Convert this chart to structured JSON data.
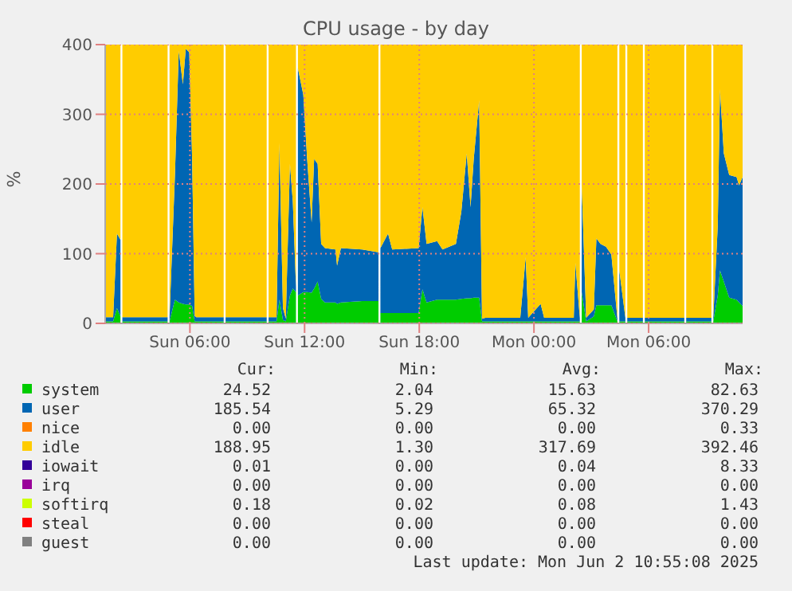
{
  "chart_data": {
    "type": "area",
    "stacked": true,
    "title": "CPU usage - by day",
    "ylabel": "%",
    "x": [
      "2025-06-01T01:34",
      "2025-06-01T01:59",
      "2025-06-01T02:11",
      "2025-06-01T02:22",
      "2025-06-01T02:25",
      "2025-06-01T02:28",
      "2025-06-01T02:37",
      "2025-06-01T02:47",
      "2025-06-01T02:50",
      "2025-06-01T02:53",
      "2025-06-01T04:50",
      "2025-06-01T04:53",
      "2025-06-01T04:56",
      "2025-06-01T05:13",
      "2025-06-01T05:25",
      "2025-06-01T05:38",
      "2025-06-01T05:47",
      "2025-06-01T05:58",
      "2025-06-01T06:07",
      "2025-06-01T06:15",
      "2025-06-01T06:20",
      "2025-06-01T07:46",
      "2025-06-01T07:49",
      "2025-06-01T07:52",
      "2025-06-01T10:01",
      "2025-06-01T10:04",
      "2025-06-01T10:07",
      "2025-06-01T10:32",
      "2025-06-01T10:41",
      "2025-06-01T10:52",
      "2025-06-01T11:01",
      "2025-06-01T11:14",
      "2025-06-01T11:23",
      "2025-06-01T11:33",
      "2025-06-01T11:36",
      "2025-06-01T11:39",
      "2025-06-01T11:56",
      "2025-06-01T12:08",
      "2025-06-01T12:22",
      "2025-06-01T12:30",
      "2025-06-01T12:41",
      "2025-06-01T12:52",
      "2025-06-01T13:04",
      "2025-06-01T13:37",
      "2025-06-01T13:42",
      "2025-06-01T13:54",
      "2025-06-01T15:01",
      "2025-06-01T15:52",
      "2025-06-01T15:55",
      "2025-06-01T15:58",
      "2025-06-01T16:22",
      "2025-06-01T16:35",
      "2025-06-01T17:58",
      "2025-06-01T18:10",
      "2025-06-01T18:23",
      "2025-06-01T18:56",
      "2025-06-01T19:13",
      "2025-06-01T19:55",
      "2025-06-01T20:12",
      "2025-06-01T20:29",
      "2025-06-01T20:41",
      "2025-06-01T20:51",
      "2025-06-01T21:08",
      "2025-06-01T21:17",
      "2025-06-01T21:28",
      "2025-06-01T23:17",
      "2025-06-01T23:34",
      "2025-06-01T23:42",
      "2025-06-02T00:21",
      "2025-06-02T00:32",
      "2025-06-02T02:05",
      "2025-06-02T02:10",
      "2025-06-02T02:24",
      "2025-06-02T02:27",
      "2025-06-02T02:30",
      "2025-06-02T02:44",
      "2025-06-02T03:08",
      "2025-06-02T03:16",
      "2025-06-02T03:29",
      "2025-06-02T03:46",
      "2025-06-02T04:03",
      "2025-06-02T04:22",
      "2025-06-02T04:25",
      "2025-06-02T04:28",
      "2025-06-02T04:47",
      "2025-06-02T04:50",
      "2025-06-02T04:53",
      "2025-06-02T05:42",
      "2025-06-02T05:45",
      "2025-06-02T05:48",
      "2025-06-02T07:52",
      "2025-06-02T07:55",
      "2025-06-02T07:58",
      "2025-06-02T09:17",
      "2025-06-02T09:20",
      "2025-06-02T09:23",
      "2025-06-02T09:37",
      "2025-06-02T09:44",
      "2025-06-02T09:56",
      "2025-06-02T10:13",
      "2025-06-02T10:36",
      "2025-06-02T10:44",
      "2025-06-02T10:55"
    ],
    "series": [
      {
        "name": "system",
        "color": "#00cc00",
        "values": [
          3,
          3,
          22,
          10,
          null,
          3,
          3,
          3,
          3,
          3,
          3,
          null,
          3,
          34,
          30,
          28,
          27,
          27,
          25,
          3,
          3,
          3,
          null,
          3,
          3,
          null,
          3,
          3,
          34,
          5,
          3,
          40,
          50,
          45,
          null,
          40,
          45,
          45,
          44,
          50,
          60,
          35,
          30,
          30,
          28,
          30,
          32,
          32,
          null,
          15,
          15,
          15,
          15,
          49,
          30,
          34,
          34,
          34,
          35,
          36,
          36,
          37,
          37,
          3,
          3,
          3,
          3,
          3,
          3,
          3,
          3,
          3,
          3,
          null,
          45,
          3,
          10,
          26,
          26,
          26,
          26,
          3,
          null,
          3,
          3,
          null,
          3,
          3,
          null,
          3,
          3,
          null,
          3,
          3,
          null,
          3,
          40,
          76,
          60,
          37,
          34,
          30,
          25
        ]
      },
      {
        "name": "user",
        "color": "#0066b3",
        "values": [
          6,
          6,
          107,
          110,
          null,
          6,
          6,
          6,
          6,
          6,
          6,
          null,
          6,
          179,
          361,
          315,
          367,
          362,
          211,
          8,
          6,
          6,
          null,
          6,
          6,
          null,
          6,
          6,
          225,
          17,
          4,
          189,
          125,
          8,
          null,
          326,
          283,
          191,
          101,
          186,
          169,
          79,
          78,
          76,
          55,
          78,
          74,
          70,
          null,
          93,
          114,
          91,
          93,
          118,
          84,
          84,
          72,
          80,
          125,
          208,
          131,
          199,
          283,
          4,
          5,
          5,
          92,
          5,
          25,
          5,
          5,
          84,
          5,
          null,
          153,
          5,
          10,
          96,
          88,
          84,
          73,
          4,
          null,
          73,
          5,
          null,
          5,
          5,
          null,
          5,
          5,
          null,
          5,
          5,
          null,
          5,
          100,
          260,
          184,
          176,
          176,
          168,
          185
        ]
      },
      {
        "name": "nice",
        "color": "#ff8000",
        "values": [
          null,
          null,
          null,
          null,
          null,
          null,
          null,
          null,
          null,
          null,
          null,
          null,
          null,
          null,
          null,
          null,
          null,
          null,
          null,
          null,
          null,
          null,
          null,
          null,
          null,
          null,
          null,
          null,
          null,
          null,
          null,
          null,
          null,
          null,
          null,
          null,
          null,
          null,
          null,
          null,
          null,
          null,
          null,
          null,
          null,
          null,
          null,
          null,
          null,
          null,
          null,
          null,
          null,
          null,
          null,
          null,
          null,
          null,
          null,
          null,
          null,
          null,
          null,
          null,
          null,
          null,
          null,
          null,
          null,
          null,
          null,
          null,
          null,
          null,
          null,
          null,
          null,
          null,
          null,
          null,
          null,
          null,
          null,
          null,
          null,
          null,
          null,
          null,
          null,
          null,
          null,
          null,
          null,
          null,
          null,
          null,
          null,
          null,
          null,
          null,
          null,
          null,
          null
        ]
      },
      {
        "name": "idle",
        "color": "#ffcc00",
        "values": [
          391,
          391,
          271,
          280,
          null,
          391,
          391,
          391,
          391,
          391,
          391,
          null,
          391,
          187,
          9,
          57,
          6,
          11,
          164,
          389,
          391,
          391,
          null,
          391,
          391,
          null,
          391,
          391,
          141,
          378,
          393,
          171,
          225,
          347,
          null,
          34,
          72,
          164,
          255,
          164,
          171,
          286,
          292,
          294,
          317,
          292,
          294,
          298,
          null,
          292,
          271,
          294,
          292,
          233,
          286,
          282,
          294,
          286,
          240,
          156,
          233,
          164,
          80,
          393,
          392,
          392,
          305,
          392,
          372,
          392,
          392,
          313,
          392,
          null,
          202,
          392,
          380,
          278,
          286,
          290,
          301,
          393,
          null,
          324,
          392,
          null,
          392,
          392,
          null,
          392,
          392,
          null,
          392,
          392,
          null,
          392,
          260,
          64,
          156,
          187,
          190,
          202,
          190
        ]
      },
      {
        "name": "iowait",
        "color": "#330099",
        "values": [
          null,
          null,
          null,
          null,
          null,
          null,
          null,
          null,
          null,
          null,
          null,
          null,
          null,
          null,
          null,
          null,
          null,
          null,
          null,
          null,
          null,
          null,
          null,
          null,
          null,
          null,
          null,
          null,
          null,
          null,
          null,
          null,
          null,
          null,
          null,
          null,
          null,
          null,
          null,
          null,
          null,
          null,
          null,
          null,
          null,
          null,
          null,
          null,
          null,
          null,
          null,
          null,
          null,
          null,
          null,
          null,
          null,
          null,
          null,
          null,
          null,
          null,
          null,
          null,
          null,
          null,
          null,
          null,
          null,
          null,
          null,
          null,
          null,
          null,
          null,
          null,
          null,
          null,
          null,
          null,
          null,
          null,
          null,
          null,
          null,
          null,
          null,
          null,
          null,
          null,
          null,
          null,
          null,
          null,
          null,
          null,
          null,
          null,
          null,
          null,
          null,
          null,
          null
        ]
      },
      {
        "name": "irq",
        "color": "#990099",
        "values": [
          null,
          null,
          null,
          null,
          null,
          null,
          null,
          null,
          null,
          null,
          null,
          null,
          null,
          null,
          null,
          null,
          null,
          null,
          null,
          null,
          null,
          null,
          null,
          null,
          null,
          null,
          null,
          null,
          null,
          null,
          null,
          null,
          null,
          null,
          null,
          null,
          null,
          null,
          null,
          null,
          null,
          null,
          null,
          null,
          null,
          null,
          null,
          null,
          null,
          null,
          null,
          null,
          null,
          null,
          null,
          null,
          null,
          null,
          null,
          null,
          null,
          null,
          null,
          null,
          null,
          null,
          null,
          null,
          null,
          null,
          null,
          null,
          null,
          null,
          null,
          null,
          null,
          null,
          null,
          null,
          null,
          null,
          null,
          null,
          null,
          null,
          null,
          null,
          null,
          null,
          null,
          null,
          null,
          null,
          null,
          null,
          null,
          null,
          null,
          null,
          null,
          null,
          null
        ]
      },
      {
        "name": "softirq",
        "color": "#ccff00",
        "values": [
          null,
          null,
          null,
          null,
          null,
          null,
          null,
          null,
          null,
          null,
          null,
          null,
          null,
          null,
          null,
          null,
          null,
          null,
          null,
          null,
          null,
          null,
          null,
          null,
          null,
          null,
          null,
          null,
          null,
          null,
          null,
          null,
          null,
          null,
          null,
          null,
          null,
          null,
          null,
          null,
          null,
          null,
          null,
          null,
          null,
          null,
          null,
          null,
          null,
          null,
          null,
          null,
          null,
          null,
          null,
          null,
          null,
          null,
          null,
          null,
          null,
          null,
          null,
          null,
          null,
          null,
          null,
          null,
          null,
          null,
          null,
          null,
          null,
          null,
          null,
          null,
          null,
          null,
          null,
          null,
          null,
          null,
          null,
          null,
          null,
          null,
          null,
          null,
          null,
          null,
          null,
          null,
          null,
          null,
          null,
          null,
          null,
          null,
          null,
          null,
          null,
          null,
          null
        ]
      },
      {
        "name": "steal",
        "color": "#ff0000",
        "values": [
          null,
          null,
          null,
          null,
          null,
          null,
          null,
          null,
          null,
          null,
          null,
          null,
          null,
          null,
          null,
          null,
          null,
          null,
          null,
          null,
          null,
          null,
          null,
          null,
          null,
          null,
          null,
          null,
          null,
          null,
          null,
          null,
          null,
          null,
          null,
          null,
          null,
          null,
          null,
          null,
          null,
          null,
          null,
          null,
          null,
          null,
          null,
          null,
          null,
          null,
          null,
          null,
          null,
          null,
          null,
          null,
          null,
          null,
          null,
          null,
          null,
          null,
          null,
          null,
          null,
          null,
          null,
          null,
          null,
          null,
          null,
          null,
          null,
          null,
          null,
          null,
          null,
          null,
          null,
          null,
          null,
          null,
          null,
          null,
          null,
          null,
          null,
          null,
          null,
          null,
          null,
          null,
          null,
          null,
          null,
          null,
          null,
          null,
          null,
          null,
          null,
          null,
          null
        ]
      },
      {
        "name": "guest",
        "color": "#808080",
        "values": [
          null,
          null,
          null,
          null,
          null,
          null,
          null,
          null,
          null,
          null,
          null,
          null,
          null,
          null,
          null,
          null,
          null,
          null,
          null,
          null,
          null,
          null,
          null,
          null,
          null,
          null,
          null,
          null,
          null,
          null,
          null,
          null,
          null,
          null,
          null,
          null,
          null,
          null,
          null,
          null,
          null,
          null,
          null,
          null,
          null,
          null,
          null,
          null,
          null,
          null,
          null,
          null,
          null,
          null,
          null,
          null,
          null,
          null,
          null,
          null,
          null,
          null,
          null,
          null,
          null,
          null,
          null,
          null,
          null,
          null,
          null,
          null,
          null,
          null,
          null,
          null,
          null,
          null,
          null,
          null,
          null,
          null,
          null,
          null,
          null,
          null,
          null,
          null,
          null,
          null,
          null,
          null,
          null,
          null,
          null,
          null,
          null,
          null,
          null,
          null,
          null,
          null,
          null
        ]
      }
    ],
    "xlim": [
      "2025-06-01T01:34",
      "2025-06-02T10:55"
    ],
    "xticks": [
      {
        "value": "2025-06-01T06:00",
        "label": "Sun 06:00"
      },
      {
        "value": "2025-06-01T12:00",
        "label": "Sun 12:00"
      },
      {
        "value": "2025-06-01T18:00",
        "label": "Sun 18:00"
      },
      {
        "value": "2025-06-02T00:00",
        "label": "Mon 00:00"
      },
      {
        "value": "2025-06-02T06:00",
        "label": "Mon 06:00"
      }
    ],
    "ylim": [
      0,
      400
    ],
    "yticks": [
      0,
      100,
      200,
      300,
      400
    ],
    "grid": true,
    "legend": "bottom",
    "annotations": [
      "Cur:",
      "Min:",
      "Avg:",
      "Max:",
      "24.52",
      "2.04",
      "15.63",
      "82.63",
      "185.54",
      "5.29",
      "65.32",
      "370.29",
      "0.00",
      "0.00",
      "0.00",
      "0.33",
      "188.95",
      "1.30",
      "317.69",
      "392.46",
      "0.01",
      "0.00",
      "0.04",
      "8.33",
      "0.00",
      "0.00",
      "0.00",
      "0.00",
      "0.18",
      "0.02",
      "0.08",
      "1.43",
      "0.00",
      "0.00",
      "0.00",
      "0.00",
      "0.00",
      "0.00",
      "0.00",
      "0.00",
      "Last update: Mon Jun  2 10:55:08 2025"
    ]
  }
}
